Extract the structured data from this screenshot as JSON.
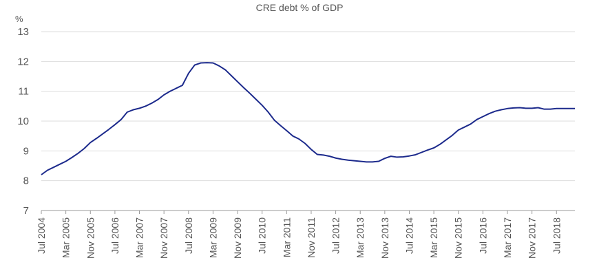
{
  "chart_data": {
    "type": "line",
    "title": "CRE debt % of GDP",
    "y_label": "%",
    "categories": [
      "Jul 2004",
      null,
      null,
      null,
      "Mar 2005",
      null,
      null,
      null,
      "Nov 2005",
      null,
      null,
      null,
      "Jul 2006",
      null,
      null,
      null,
      "Mar 2007",
      null,
      null,
      null,
      "Nov 2007",
      null,
      null,
      null,
      "Jul 2008",
      null,
      null,
      null,
      "Mar 2009",
      null,
      null,
      null,
      "Nov 2009",
      null,
      null,
      null,
      "Jul 2010",
      null,
      null,
      null,
      "Mar 2011",
      null,
      null,
      null,
      "Nov 2011",
      null,
      null,
      null,
      "Jul 2012",
      null,
      null,
      null,
      "Mar 2013",
      null,
      null,
      null,
      "Nov 2013",
      null,
      null,
      null,
      "Jul 2014",
      null,
      null,
      null,
      "Mar 2015",
      null,
      null,
      null,
      "Nov 2015",
      null,
      null,
      null,
      "Jul 2016",
      null,
      null,
      null,
      "Mar 2017",
      null,
      null,
      null,
      "Nov 2017",
      null,
      null,
      null,
      "Jul 2018",
      null,
      null,
      null
    ],
    "series": [
      {
        "name": "CRE debt % of GDP",
        "color": "#1c2a8c",
        "values": [
          8.2,
          8.35,
          8.45,
          8.55,
          8.65,
          8.78,
          8.92,
          9.08,
          9.28,
          9.42,
          9.57,
          9.72,
          9.88,
          10.05,
          10.3,
          10.38,
          10.43,
          10.5,
          10.6,
          10.72,
          10.88,
          11.0,
          11.1,
          11.2,
          11.6,
          11.88,
          11.95,
          11.96,
          11.95,
          11.85,
          11.72,
          11.52,
          11.32,
          11.12,
          10.93,
          10.73,
          10.53,
          10.3,
          10.03,
          9.85,
          9.68,
          9.5,
          9.4,
          9.25,
          9.05,
          8.88,
          8.86,
          8.82,
          8.76,
          8.72,
          8.69,
          8.67,
          8.65,
          8.63,
          8.63,
          8.65,
          8.75,
          8.82,
          8.79,
          8.8,
          8.83,
          8.87,
          8.95,
          9.03,
          9.1,
          9.22,
          9.37,
          9.52,
          9.7,
          9.8,
          9.9,
          10.05,
          10.15,
          10.25,
          10.33,
          10.38,
          10.42,
          10.44,
          10.45,
          10.43,
          10.43,
          10.45,
          10.4,
          10.4,
          10.42,
          10.42,
          10.42,
          10.42
        ]
      }
    ],
    "ylim": [
      7,
      13
    ],
    "yticks": [
      7,
      8,
      9,
      10,
      11,
      12,
      13
    ],
    "grid": true
  }
}
